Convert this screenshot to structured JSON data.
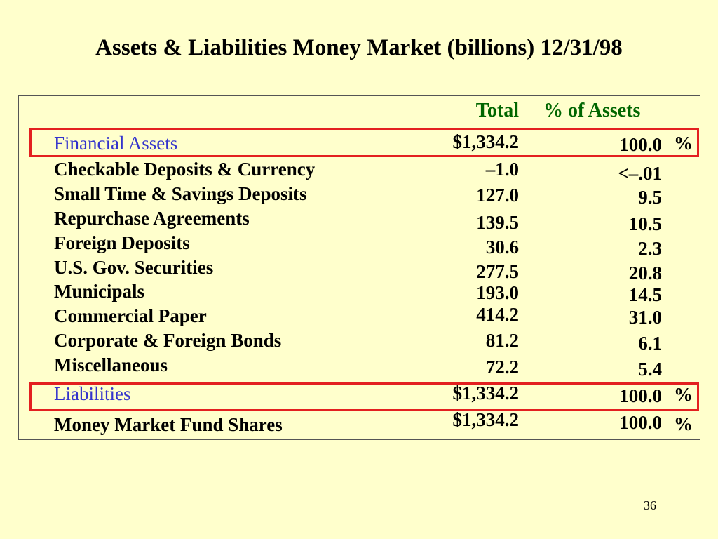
{
  "title": "Assets & Liabilities Money Market (billions) 12/31/98",
  "page_number": "36",
  "colors": {
    "background": "#FFFFCC",
    "header": "#006600",
    "section": "#3333CC",
    "highlight": "#E32020"
  },
  "chart_data": {
    "type": "table",
    "title": "Assets & Liabilities Money Market (billions) 12/31/98",
    "columns": [
      "",
      "Total",
      "% of Assets"
    ],
    "rows": [
      {
        "label": "Financial Assets",
        "total": "$1,334.2",
        "pct": "100.0",
        "pct_sign": "%",
        "section": true,
        "highlighted": true
      },
      {
        "label": "Checkable Deposits & Currency",
        "total": "–1.0",
        "pct": "<–.01",
        "pct_sign": ""
      },
      {
        "label": "Small Time & Savings Deposits",
        "total": "127.0",
        "pct": "9.5",
        "pct_sign": ""
      },
      {
        "label": "Repurchase Agreements",
        "total": "139.5",
        "pct": "10.5",
        "pct_sign": ""
      },
      {
        "label": "Foreign Deposits",
        "total": "30.6",
        "pct": "2.3",
        "pct_sign": ""
      },
      {
        "label": "U.S. Gov. Securities",
        "total": "277.5",
        "pct": "20.8",
        "pct_sign": ""
      },
      {
        "label": "Municipals",
        "total": "193.0",
        "pct": "14.5",
        "pct_sign": ""
      },
      {
        "label": "Commercial Paper",
        "total": "414.2",
        "pct": "31.0",
        "pct_sign": ""
      },
      {
        "label": "Corporate & Foreign Bonds",
        "total": "81.2",
        "pct": "6.1",
        "pct_sign": ""
      },
      {
        "label": "Miscellaneous",
        "total": "72.2",
        "pct": "5.4",
        "pct_sign": ""
      },
      {
        "label": "Liabilities",
        "total": "$1,334.2",
        "pct": "100.0",
        "pct_sign": "%",
        "section": true,
        "highlighted": true
      },
      {
        "label": "Money Market Fund Shares",
        "total": "$1,334.2",
        "pct": "100.0",
        "pct_sign": "%"
      }
    ]
  }
}
